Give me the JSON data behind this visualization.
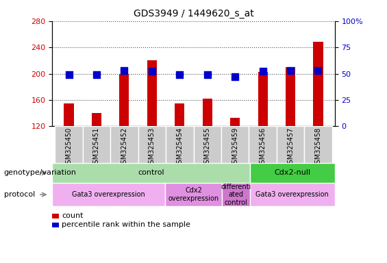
{
  "title": "GDS3949 / 1449620_s_at",
  "samples": [
    "GSM325450",
    "GSM325451",
    "GSM325452",
    "GSM325453",
    "GSM325454",
    "GSM325455",
    "GSM325459",
    "GSM325456",
    "GSM325457",
    "GSM325458"
  ],
  "counts": [
    155,
    140,
    200,
    220,
    155,
    162,
    133,
    203,
    210,
    248
  ],
  "percentiles": [
    49,
    49,
    53,
    52,
    49,
    49,
    47,
    52,
    53,
    53
  ],
  "ylim_left": [
    120,
    280
  ],
  "ylim_right": [
    0,
    100
  ],
  "yticks_left": [
    120,
    160,
    200,
    240,
    280
  ],
  "yticks_right": [
    0,
    25,
    50,
    75,
    100
  ],
  "bar_color": "#cc0000",
  "dot_color": "#0000cc",
  "bar_width": 0.35,
  "dot_size": 55,
  "genotype_groups": [
    {
      "label": "control",
      "start": 0,
      "end": 7,
      "color": "#aaddaa"
    },
    {
      "label": "Cdx2-null",
      "start": 7,
      "end": 10,
      "color": "#44cc44"
    }
  ],
  "protocol_groups": [
    {
      "label": "Gata3 overexpression",
      "start": 0,
      "end": 4,
      "color": "#f0b0f0"
    },
    {
      "label": "Cdx2\noverexpression",
      "start": 4,
      "end": 6,
      "color": "#e090e0"
    },
    {
      "label": "differenti\nated\ncontrol",
      "start": 6,
      "end": 7,
      "color": "#cc77cc"
    },
    {
      "label": "Gata3 overexpression",
      "start": 7,
      "end": 10,
      "color": "#f0b0f0"
    }
  ],
  "left_label_color": "#cc0000",
  "right_label_color": "#0000cc",
  "genotype_label": "genotype/variation",
  "protocol_label": "protocol",
  "legend_count_label": "count",
  "legend_pct_label": "percentile rank within the sample",
  "tick_bg_color": "#cccccc",
  "right_ytick_labels": [
    "0",
    "25",
    "50",
    "75",
    "100%"
  ]
}
